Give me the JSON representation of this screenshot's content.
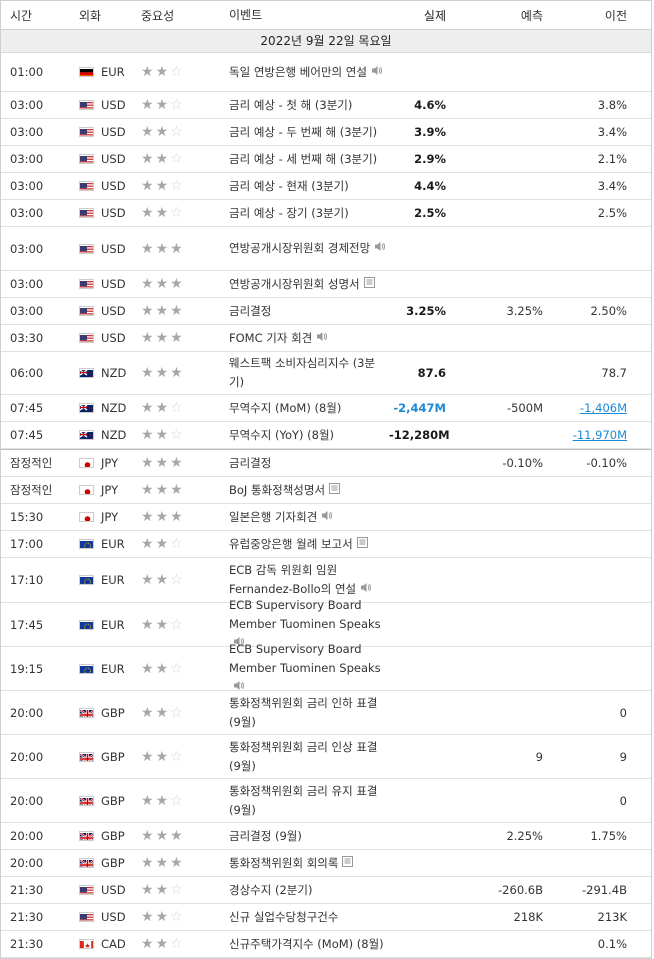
{
  "header": {
    "time": "시간",
    "currency": "외화",
    "importance": "중요성",
    "event": "이벤트",
    "actual": "실제",
    "forecast": "예측",
    "previous": "이전"
  },
  "date_label": "2022년 9월 22일 목요일",
  "rows": [
    {
      "time": "01:00",
      "flag": "de",
      "cur": "EUR",
      "stars": 2,
      "event": "독일 연방은행 베어만의 연설",
      "icon": "speaker",
      "actual": "",
      "forecast": "",
      "previous": "",
      "h": 38
    },
    {
      "time": "03:00",
      "flag": "us",
      "cur": "USD",
      "stars": 2,
      "event": "금리 예상 - 첫 해 (3분기)",
      "icon": "",
      "actual": "4.6%",
      "forecast": "",
      "previous": "3.8%",
      "h": 26
    },
    {
      "time": "03:00",
      "flag": "us",
      "cur": "USD",
      "stars": 2,
      "event": "금리 예상 - 두 번째 해 (3분기)",
      "icon": "",
      "actual": "3.9%",
      "forecast": "",
      "previous": "3.4%",
      "h": 26
    },
    {
      "time": "03:00",
      "flag": "us",
      "cur": "USD",
      "stars": 2,
      "event": "금리 예상 - 세 번째 해 (3분기)",
      "icon": "",
      "actual": "2.9%",
      "forecast": "",
      "previous": "2.1%",
      "h": 26
    },
    {
      "time": "03:00",
      "flag": "us",
      "cur": "USD",
      "stars": 2,
      "event": "금리 예상 - 현재 (3분기)",
      "icon": "",
      "actual": "4.4%",
      "forecast": "",
      "previous": "3.4%",
      "h": 26
    },
    {
      "time": "03:00",
      "flag": "us",
      "cur": "USD",
      "stars": 2,
      "event": "금리 예상 - 장기 (3분기)",
      "icon": "",
      "actual": "2.5%",
      "forecast": "",
      "previous": "2.5%",
      "h": 26
    },
    {
      "time": "03:00",
      "flag": "us",
      "cur": "USD",
      "stars": 3,
      "event": "연방공개시장위원회 경제전망",
      "icon": "speaker",
      "actual": "",
      "forecast": "",
      "previous": "",
      "h": 43
    },
    {
      "time": "03:00",
      "flag": "us",
      "cur": "USD",
      "stars": 3,
      "event": "연방공개시장위원회 성명서",
      "icon": "doc",
      "actual": "",
      "forecast": "",
      "previous": "",
      "h": 26
    },
    {
      "time": "03:00",
      "flag": "us",
      "cur": "USD",
      "stars": 3,
      "event": "금리결정",
      "icon": "",
      "actual": "3.25%",
      "forecast": "3.25%",
      "previous": "2.50%",
      "h": 26
    },
    {
      "time": "03:30",
      "flag": "us",
      "cur": "USD",
      "stars": 3,
      "event": "FOMC 기자 회견",
      "icon": "speaker",
      "actual": "",
      "forecast": "",
      "previous": "",
      "h": 26
    },
    {
      "time": "06:00",
      "flag": "nz",
      "cur": "NZD",
      "stars": 3,
      "event": "웨스트팩 소비자심리지수 (3분기)",
      "icon": "",
      "actual": "87.6",
      "forecast": "",
      "previous": "78.7",
      "h": 42
    },
    {
      "time": "07:45",
      "flag": "nz",
      "cur": "NZD",
      "stars": 2,
      "event": "무역수지 (MoM) (8월)",
      "icon": "",
      "actual": "-2,447M",
      "actualColor": "blue",
      "forecast": "-500M",
      "previous": "-1,406M",
      "prevStyle": "blue-ul",
      "h": 26
    },
    {
      "time": "07:45",
      "flag": "nz",
      "cur": "NZD",
      "stars": 2,
      "event": "무역수지 (YoY) (8월)",
      "icon": "",
      "actual": "-12,280M",
      "forecast": "",
      "previous": "-11,970M",
      "prevStyle": "blue-ul",
      "h": 26
    },
    {
      "time": "잠정적인",
      "flag": "jp",
      "cur": "JPY",
      "stars": 3,
      "event": "금리결정",
      "icon": "",
      "actual": "",
      "forecast": "-0.10%",
      "previous": "-0.10%",
      "h": 26,
      "sep": true
    },
    {
      "time": "잠정적인",
      "flag": "jp",
      "cur": "JPY",
      "stars": 3,
      "event": "BoJ 통화정책성명서",
      "icon": "doc",
      "actual": "",
      "forecast": "",
      "previous": "",
      "h": 26
    },
    {
      "time": "15:30",
      "flag": "jp",
      "cur": "JPY",
      "stars": 3,
      "event": "일본은행 기자회견",
      "icon": "speaker",
      "actual": "",
      "forecast": "",
      "previous": "",
      "h": 26
    },
    {
      "time": "17:00",
      "flag": "eu",
      "cur": "EUR",
      "stars": 2,
      "event": "유럽중앙은행 월례 보고서",
      "icon": "doc",
      "actual": "",
      "forecast": "",
      "previous": "",
      "h": 26
    },
    {
      "time": "17:10",
      "flag": "eu",
      "cur": "EUR",
      "stars": 2,
      "event": "ECB 감독 위원회 임원 Fernandez-Bollo의 연설",
      "icon": "speaker",
      "actual": "",
      "forecast": "",
      "previous": "",
      "h": 44
    },
    {
      "time": "17:45",
      "flag": "eu",
      "cur": "EUR",
      "stars": 2,
      "event": "ECB Supervisory Board Member Tuominen Speaks",
      "icon": "speaker",
      "actual": "",
      "forecast": "",
      "previous": "",
      "h": 43
    },
    {
      "time": "19:15",
      "flag": "eu",
      "cur": "EUR",
      "stars": 2,
      "event": "ECB Supervisory Board Member Tuominen Speaks",
      "icon": "speaker",
      "actual": "",
      "forecast": "",
      "previous": "",
      "h": 43
    },
    {
      "time": "20:00",
      "flag": "gb",
      "cur": "GBP",
      "stars": 2,
      "event": "통화정책위원회 금리 인하 표결 (9월)",
      "icon": "",
      "actual": "",
      "forecast": "",
      "previous": "0",
      "h": 43
    },
    {
      "time": "20:00",
      "flag": "gb",
      "cur": "GBP",
      "stars": 2,
      "event": "통화정책위원회 금리 인상 표결 (9월)",
      "icon": "",
      "actual": "",
      "forecast": "9",
      "previous": "9",
      "h": 43
    },
    {
      "time": "20:00",
      "flag": "gb",
      "cur": "GBP",
      "stars": 2,
      "event": "통화정책위원회 금리 유지 표결 (9월)",
      "icon": "",
      "actual": "",
      "forecast": "",
      "previous": "0",
      "h": 43
    },
    {
      "time": "20:00",
      "flag": "gb",
      "cur": "GBP",
      "stars": 3,
      "event": "금리결정 (9월)",
      "icon": "",
      "actual": "",
      "forecast": "2.25%",
      "previous": "1.75%",
      "h": 26
    },
    {
      "time": "20:00",
      "flag": "gb",
      "cur": "GBP",
      "stars": 3,
      "event": "통화정책위원회 회의록",
      "icon": "doc",
      "actual": "",
      "forecast": "",
      "previous": "",
      "h": 26
    },
    {
      "time": "21:30",
      "flag": "us",
      "cur": "USD",
      "stars": 2,
      "event": "경상수지 (2분기)",
      "icon": "",
      "actual": "",
      "forecast": "-260.6B",
      "previous": "-291.4B",
      "h": 26
    },
    {
      "time": "21:30",
      "flag": "us",
      "cur": "USD",
      "stars": 2,
      "event": "신규 실업수당청구건수",
      "icon": "",
      "actual": "",
      "forecast": "218K",
      "previous": "213K",
      "h": 26
    },
    {
      "time": "21:30",
      "flag": "ca",
      "cur": "CAD",
      "stars": 2,
      "event": "신규주택가격지수 (MoM) (8월)",
      "icon": "",
      "actual": "",
      "forecast": "",
      "previous": "0.1%",
      "h": 26
    }
  ]
}
